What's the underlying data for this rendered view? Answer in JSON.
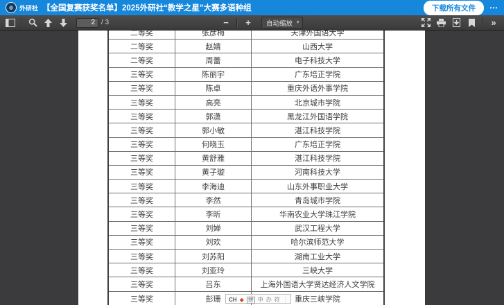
{
  "header": {
    "brand": "外研社",
    "title": "【全国复赛获奖名单】2025外研社“教学之星”大赛多语种组",
    "download_all_label": "下载所有文件",
    "more_label": "⋯"
  },
  "toolbar": {
    "page_value": "2",
    "page_total": "/ 3",
    "zoom_out_label": "−",
    "zoom_in_label": "+",
    "scale_label": "自动缩放",
    "more_tools_label": "»",
    "icons": [
      "sidebar-toggle-icon",
      "search-icon",
      "page-up-icon",
      "page-down-icon",
      "presentation-mode-icon",
      "print-icon",
      "download-icon",
      "bookmark-icon"
    ]
  },
  "table": {
    "columns": [
      "award",
      "name",
      "school"
    ],
    "rows": [
      {
        "award": "二等奖",
        "name": "张彦梅",
        "school": "天津外国语大学"
      },
      {
        "award": "二等奖",
        "name": "赵婧",
        "school": "山西大学"
      },
      {
        "award": "二等奖",
        "name": "周蕾",
        "school": "电子科技大学"
      },
      {
        "award": "三等奖",
        "name": "陈丽宇",
        "school": "广东培正学院"
      },
      {
        "award": "三等奖",
        "name": "陈卓",
        "school": "重庆外语外事学院"
      },
      {
        "award": "三等奖",
        "name": "高亮",
        "school": "北京城市学院"
      },
      {
        "award": "三等奖",
        "name": "郭潇",
        "school": "黑龙江外国语学院"
      },
      {
        "award": "三等奖",
        "name": "郭小敏",
        "school": "湛江科技学院"
      },
      {
        "award": "三等奖",
        "name": "何晓玉",
        "school": "广东培正学院"
      },
      {
        "award": "三等奖",
        "name": "黄舒雅",
        "school": "湛江科技学院"
      },
      {
        "award": "三等奖",
        "name": "黄子璇",
        "school": "河南科技大学"
      },
      {
        "award": "三等奖",
        "name": "李海迪",
        "school": "山东外事职业大学"
      },
      {
        "award": "三等奖",
        "name": "李然",
        "school": "青岛城市学院"
      },
      {
        "award": "三等奖",
        "name": "李昕",
        "school": "华南农业大学珠江学院"
      },
      {
        "award": "三等奖",
        "name": "刘婵",
        "school": "武汉工程大学"
      },
      {
        "award": "三等奖",
        "name": "刘欢",
        "school": "哈尔滨师范大学"
      },
      {
        "award": "三等奖",
        "name": "刘苏阳",
        "school": "湖南工业大学"
      },
      {
        "award": "三等奖",
        "name": "刘亚玲",
        "school": "三峡大学"
      },
      {
        "award": "三等奖",
        "name": "吕东",
        "school": "上海外国语大学贤达经济人文学院"
      },
      {
        "award": "三等奖",
        "name": "彭珊",
        "school": "重庆三峡学院"
      }
    ]
  },
  "ime": {
    "items": [
      {
        "glyph": "CH",
        "style": "strong"
      },
      {
        "glyph": "◆",
        "style": "accent"
      },
      {
        "glyph": "拼",
        "style": "boxed"
      },
      {
        "glyph": "中",
        "style": "faint"
      },
      {
        "glyph": "办",
        "style": "faint"
      },
      {
        "glyph": "符",
        "style": "faint"
      },
      {
        "glyph": "⋮",
        "style": "handle"
      }
    ]
  }
}
